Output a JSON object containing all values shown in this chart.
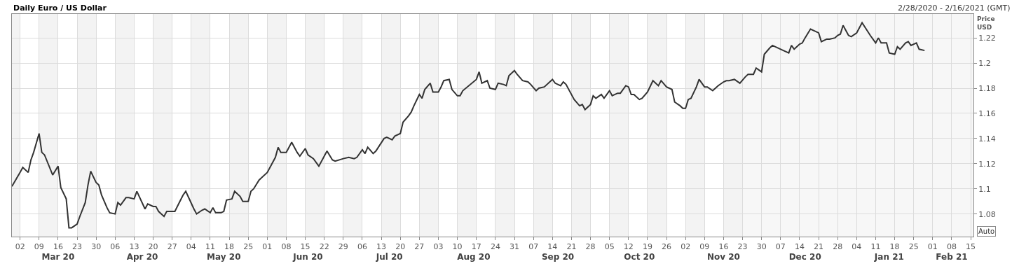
{
  "chart_data": {
    "type": "line",
    "title": "Daily Euro / US Dollar",
    "subtitle": "2/28/2020 - 2/16/2021 (GMT)",
    "ylabel": "Price\nUSD",
    "annotations": [
      "Auto"
    ],
    "x": [
      "2020-02-28",
      "2020-03-02",
      "2020-03-03",
      "2020-03-05",
      "2020-03-06",
      "2020-03-07",
      "2020-03-09",
      "2020-03-10",
      "2020-03-11",
      "2020-03-14",
      "2020-03-16",
      "2020-03-17",
      "2020-03-19",
      "2020-03-20",
      "2020-03-21",
      "2020-03-23",
      "2020-03-24",
      "2020-03-26",
      "2020-03-27",
      "2020-03-28",
      "2020-03-30",
      "2020-03-31",
      "2020-04-01",
      "2020-04-03",
      "2020-04-04",
      "2020-04-06",
      "2020-04-07",
      "2020-04-08",
      "2020-04-10",
      "2020-04-11",
      "2020-04-13",
      "2020-04-14",
      "2020-04-17",
      "2020-04-18",
      "2020-04-20",
      "2020-04-21",
      "2020-04-22",
      "2020-04-24",
      "2020-04-25",
      "2020-04-27",
      "2020-04-28",
      "2020-05-01",
      "2020-05-02",
      "2020-05-05",
      "2020-05-06",
      "2020-05-08",
      "2020-05-09",
      "2020-05-11",
      "2020-05-12",
      "2020-05-13",
      "2020-05-15",
      "2020-05-16",
      "2020-05-17",
      "2020-05-19",
      "2020-05-20",
      "2020-05-22",
      "2020-05-23",
      "2020-05-25",
      "2020-05-26",
      "2020-05-27",
      "2020-05-29",
      "2020-06-01",
      "2020-06-02",
      "2020-06-04",
      "2020-06-05",
      "2020-06-06",
      "2020-06-08",
      "2020-06-09",
      "2020-06-10",
      "2020-06-12",
      "2020-06-13",
      "2020-06-15",
      "2020-06-16",
      "2020-06-18",
      "2020-06-20",
      "2020-06-22",
      "2020-06-23",
      "2020-06-25",
      "2020-06-26",
      "2020-06-29",
      "2020-07-01",
      "2020-07-03",
      "2020-07-04",
      "2020-07-06",
      "2020-07-07",
      "2020-07-08",
      "2020-07-10",
      "2020-07-11",
      "2020-07-14",
      "2020-07-15",
      "2020-07-17",
      "2020-07-18",
      "2020-07-20",
      "2020-07-21",
      "2020-07-23",
      "2020-07-24",
      "2020-07-25",
      "2020-07-27",
      "2020-07-28",
      "2020-07-29",
      "2020-07-31",
      "2020-08-01",
      "2020-08-03",
      "2020-08-04",
      "2020-08-05",
      "2020-08-07",
      "2020-08-08",
      "2020-08-10",
      "2020-08-11",
      "2020-08-12",
      "2020-08-17",
      "2020-08-18",
      "2020-08-19",
      "2020-08-21",
      "2020-08-22",
      "2020-08-24",
      "2020-08-25",
      "2020-08-27",
      "2020-08-28",
      "2020-08-29",
      "2020-08-31",
      "2020-09-01",
      "2020-09-03",
      "2020-09-05",
      "2020-09-06",
      "2020-09-08",
      "2020-09-09",
      "2020-09-11",
      "2020-09-14",
      "2020-09-15",
      "2020-09-17",
      "2020-09-18",
      "2020-09-19",
      "2020-09-22",
      "2020-09-24",
      "2020-09-25",
      "2020-09-26",
      "2020-09-28",
      "2020-09-29",
      "2020-09-30",
      "2020-10-02",
      "2020-10-03",
      "2020-10-05",
      "2020-10-06",
      "2020-10-08",
      "2020-10-09",
      "2020-10-11",
      "2020-10-12",
      "2020-10-13",
      "2020-10-14",
      "2020-10-16",
      "2020-10-17",
      "2020-10-19",
      "2020-10-21",
      "2020-10-23",
      "2020-10-24",
      "2020-10-26",
      "2020-10-28",
      "2020-10-29",
      "2020-10-31",
      "2020-11-01",
      "2020-11-02",
      "2020-11-03",
      "2020-11-04",
      "2020-11-06",
      "2020-11-07",
      "2020-11-09",
      "2020-11-10",
      "2020-11-12",
      "2020-11-14",
      "2020-11-16",
      "2020-11-17",
      "2020-11-18",
      "2020-11-20",
      "2020-11-22",
      "2020-11-24",
      "2020-11-25",
      "2020-11-27",
      "2020-11-28",
      "2020-11-30",
      "2020-12-01",
      "2020-12-03",
      "2020-12-04",
      "2020-12-08",
      "2020-12-10",
      "2020-12-11",
      "2020-12-12",
      "2020-12-14",
      "2020-12-15",
      "2020-12-16",
      "2020-12-18",
      "2020-12-21",
      "2020-12-22",
      "2020-12-24",
      "2020-12-25",
      "2020-12-27",
      "2020-12-28",
      "2020-12-29",
      "2020-12-30",
      "2021-01-01",
      "2021-01-02",
      "2021-01-04",
      "2021-01-05",
      "2021-01-06",
      "2021-01-09",
      "2021-01-11",
      "2021-01-12",
      "2021-01-13",
      "2021-01-15",
      "2021-01-16",
      "2021-01-18",
      "2021-01-19",
      "2021-01-20",
      "2021-01-22",
      "2021-01-23",
      "2021-01-24",
      "2021-01-26",
      "2021-01-27",
      "2021-01-29"
    ],
    "series": [
      {
        "color": "#333333",
        "values": [
          1.102,
          1.113,
          1.117,
          1.113,
          1.123,
          1.129,
          1.144,
          1.129,
          1.127,
          1.111,
          1.118,
          1.101,
          1.092,
          1.069,
          1.069,
          1.072,
          1.078,
          1.089,
          1.103,
          1.114,
          1.105,
          1.103,
          1.095,
          1.085,
          1.081,
          1.08,
          1.089,
          1.087,
          1.093,
          1.093,
          1.092,
          1.098,
          1.084,
          1.088,
          1.086,
          1.086,
          1.082,
          1.078,
          1.082,
          1.082,
          1.082,
          1.095,
          1.098,
          1.084,
          1.08,
          1.083,
          1.084,
          1.081,
          1.085,
          1.081,
          1.081,
          1.082,
          1.091,
          1.092,
          1.098,
          1.094,
          1.09,
          1.09,
          1.098,
          1.1,
          1.107,
          1.113,
          1.117,
          1.125,
          1.133,
          1.129,
          1.129,
          1.133,
          1.137,
          1.129,
          1.126,
          1.132,
          1.127,
          1.124,
          1.118,
          1.126,
          1.13,
          1.123,
          1.122,
          1.124,
          1.125,
          1.124,
          1.125,
          1.131,
          1.128,
          1.133,
          1.128,
          1.13,
          1.14,
          1.141,
          1.139,
          1.142,
          1.144,
          1.153,
          1.158,
          1.161,
          1.166,
          1.175,
          1.172,
          1.179,
          1.184,
          1.177,
          1.177,
          1.181,
          1.186,
          1.187,
          1.179,
          1.174,
          1.174,
          1.178,
          1.187,
          1.193,
          1.184,
          1.186,
          1.18,
          1.179,
          1.184,
          1.183,
          1.182,
          1.19,
          1.194,
          1.191,
          1.186,
          1.185,
          1.183,
          1.178,
          1.18,
          1.181,
          1.187,
          1.184,
          1.182,
          1.185,
          1.183,
          1.171,
          1.166,
          1.167,
          1.163,
          1.167,
          1.174,
          1.172,
          1.175,
          1.172,
          1.178,
          1.174,
          1.176,
          1.176,
          1.182,
          1.181,
          1.175,
          1.175,
          1.171,
          1.172,
          1.177,
          1.186,
          1.182,
          1.186,
          1.181,
          1.179,
          1.169,
          1.166,
          1.164,
          1.164,
          1.171,
          1.172,
          1.181,
          1.187,
          1.181,
          1.181,
          1.178,
          1.182,
          1.185,
          1.186,
          1.186,
          1.187,
          1.184,
          1.189,
          1.191,
          1.191,
          1.196,
          1.193,
          1.207,
          1.212,
          1.214,
          1.21,
          1.208,
          1.214,
          1.211,
          1.215,
          1.216,
          1.22,
          1.227,
          1.224,
          1.217,
          1.219,
          1.219,
          1.22,
          1.222,
          1.223,
          1.23,
          1.222,
          1.221,
          1.224,
          1.228,
          1.232,
          1.222,
          1.216,
          1.22,
          1.216,
          1.216,
          1.208,
          1.207,
          1.213,
          1.211,
          1.216,
          1.217,
          1.214,
          1.216,
          1.211,
          1.21
        ]
      }
    ],
    "xlim": [
      "2020-02-28",
      "2021-02-16"
    ],
    "ylim": [
      1.062,
      1.239
    ],
    "yticks": [
      1.08,
      1.1,
      1.12,
      1.14,
      1.16,
      1.18,
      1.2,
      1.22
    ],
    "xticks": [
      {
        "value": "2020-03-02",
        "label": "02"
      },
      {
        "value": "2020-03-09",
        "label": "09"
      },
      {
        "value": "2020-03-16",
        "label": "16"
      },
      {
        "value": "2020-03-23",
        "label": "23"
      },
      {
        "value": "2020-03-30",
        "label": "30"
      },
      {
        "value": "2020-04-06",
        "label": "06"
      },
      {
        "value": "2020-04-13",
        "label": "13"
      },
      {
        "value": "2020-04-20",
        "label": "20"
      },
      {
        "value": "2020-04-27",
        "label": "27"
      },
      {
        "value": "2020-05-04",
        "label": "04"
      },
      {
        "value": "2020-05-11",
        "label": "11"
      },
      {
        "value": "2020-05-18",
        "label": "18"
      },
      {
        "value": "2020-05-25",
        "label": "25"
      },
      {
        "value": "2020-06-01",
        "label": "01"
      },
      {
        "value": "2020-06-08",
        "label": "08"
      },
      {
        "value": "2020-06-15",
        "label": "15"
      },
      {
        "value": "2020-06-22",
        "label": "22"
      },
      {
        "value": "2020-06-29",
        "label": "29"
      },
      {
        "value": "2020-07-06",
        "label": "06"
      },
      {
        "value": "2020-07-13",
        "label": "13"
      },
      {
        "value": "2020-07-20",
        "label": "20"
      },
      {
        "value": "2020-07-27",
        "label": "27"
      },
      {
        "value": "2020-08-03",
        "label": "03"
      },
      {
        "value": "2020-08-10",
        "label": "10"
      },
      {
        "value": "2020-08-17",
        "label": "17"
      },
      {
        "value": "2020-08-24",
        "label": "24"
      },
      {
        "value": "2020-08-31",
        "label": "31"
      },
      {
        "value": "2020-09-07",
        "label": "07"
      },
      {
        "value": "2020-09-14",
        "label": "14"
      },
      {
        "value": "2020-09-21",
        "label": "21"
      },
      {
        "value": "2020-09-28",
        "label": "28"
      },
      {
        "value": "2020-10-05",
        "label": "05"
      },
      {
        "value": "2020-10-12",
        "label": "12"
      },
      {
        "value": "2020-10-19",
        "label": "19"
      },
      {
        "value": "2020-10-26",
        "label": "26"
      },
      {
        "value": "2020-11-02",
        "label": "02"
      },
      {
        "value": "2020-11-09",
        "label": "09"
      },
      {
        "value": "2020-11-16",
        "label": "16"
      },
      {
        "value": "2020-11-23",
        "label": "23"
      },
      {
        "value": "2020-11-30",
        "label": "30"
      },
      {
        "value": "2020-12-07",
        "label": "07"
      },
      {
        "value": "2020-12-14",
        "label": "14"
      },
      {
        "value": "2020-12-21",
        "label": "21"
      },
      {
        "value": "2020-12-28",
        "label": "28"
      },
      {
        "value": "2021-01-04",
        "label": "04"
      },
      {
        "value": "2021-01-11",
        "label": "11"
      },
      {
        "value": "2021-01-18",
        "label": "18"
      },
      {
        "value": "2021-01-25",
        "label": "25"
      },
      {
        "value": "2021-02-01",
        "label": "01"
      },
      {
        "value": "2021-02-08",
        "label": "08"
      },
      {
        "value": "2021-02-15",
        "label": "15"
      }
    ],
    "x2lim": [
      "2020-02-28",
      "2021-02-16"
    ],
    "x2ticks": [
      {
        "value": "2020-03-16",
        "label": "Mar 20"
      },
      {
        "value": "2020-04-16",
        "label": "Apr 20"
      },
      {
        "value": "2020-05-16",
        "label": "May 20"
      },
      {
        "value": "2020-06-16",
        "label": "Jun 20"
      },
      {
        "value": "2020-07-16",
        "label": "Jul 20"
      },
      {
        "value": "2020-08-16",
        "label": "Aug 20"
      },
      {
        "value": "2020-09-16",
        "label": "Sep 20"
      },
      {
        "value": "2020-10-16",
        "label": "Oct 20"
      },
      {
        "value": "2020-11-16",
        "label": "Nov 20"
      },
      {
        "value": "2020-12-16",
        "label": "Dec 20"
      },
      {
        "value": "2021-01-16",
        "label": "Jan 21"
      },
      {
        "value": "2021-02-08",
        "label": "Feb 21"
      }
    ],
    "bands": [
      {
        "axis": "x",
        "from": "2020-02-28",
        "to": "2020-03-02",
        "color": "#f3f3f3"
      },
      {
        "axis": "x",
        "from": "2020-03-09",
        "to": "2020-03-16",
        "color": "#f3f3f3"
      },
      {
        "axis": "x",
        "from": "2020-03-23",
        "to": "2020-03-30",
        "color": "#f3f3f3"
      },
      {
        "axis": "x",
        "from": "2020-04-06",
        "to": "2020-04-13",
        "color": "#f3f3f3"
      },
      {
        "axis": "x",
        "from": "2020-04-20",
        "to": "2020-04-27",
        "color": "#f3f3f3"
      },
      {
        "axis": "x",
        "from": "2020-05-04",
        "to": "2020-05-11",
        "color": "#f3f3f3"
      },
      {
        "axis": "x",
        "from": "2020-05-18",
        "to": "2020-05-25",
        "color": "#f3f3f3"
      },
      {
        "axis": "x",
        "from": "2020-06-01",
        "to": "2020-06-08",
        "color": "#f3f3f3"
      },
      {
        "axis": "x",
        "from": "2020-06-15",
        "to": "2020-06-22",
        "color": "#f3f3f3"
      },
      {
        "axis": "x",
        "from": "2020-06-29",
        "to": "2020-07-06",
        "color": "#f3f3f3"
      },
      {
        "axis": "x",
        "from": "2020-07-13",
        "to": "2020-07-20",
        "color": "#f3f3f3"
      },
      {
        "axis": "x",
        "from": "2020-07-27",
        "to": "2020-08-03",
        "color": "#f3f3f3"
      },
      {
        "axis": "x",
        "from": "2020-08-10",
        "to": "2020-08-17",
        "color": "#f3f3f3"
      },
      {
        "axis": "x",
        "from": "2020-08-24",
        "to": "2020-08-31",
        "color": "#f3f3f3"
      },
      {
        "axis": "x",
        "from": "2020-09-07",
        "to": "2020-09-14",
        "color": "#f3f3f3"
      },
      {
        "axis": "x",
        "from": "2020-09-21",
        "to": "2020-09-28",
        "color": "#f3f3f3"
      },
      {
        "axis": "x",
        "from": "2020-10-05",
        "to": "2020-10-12",
        "color": "#f3f3f3"
      },
      {
        "axis": "x",
        "from": "2020-10-19",
        "to": "2020-10-26",
        "color": "#f3f3f3"
      },
      {
        "axis": "x",
        "from": "2020-11-02",
        "to": "2020-11-09",
        "color": "#f3f3f3"
      },
      {
        "axis": "x",
        "from": "2020-11-16",
        "to": "2020-11-23",
        "color": "#f3f3f3"
      },
      {
        "axis": "x",
        "from": "2020-11-23",
        "to": "2021-02-16",
        "color": "#f7f7f7"
      }
    ],
    "grid": true,
    "line_style": "solid",
    "marker": "none"
  }
}
